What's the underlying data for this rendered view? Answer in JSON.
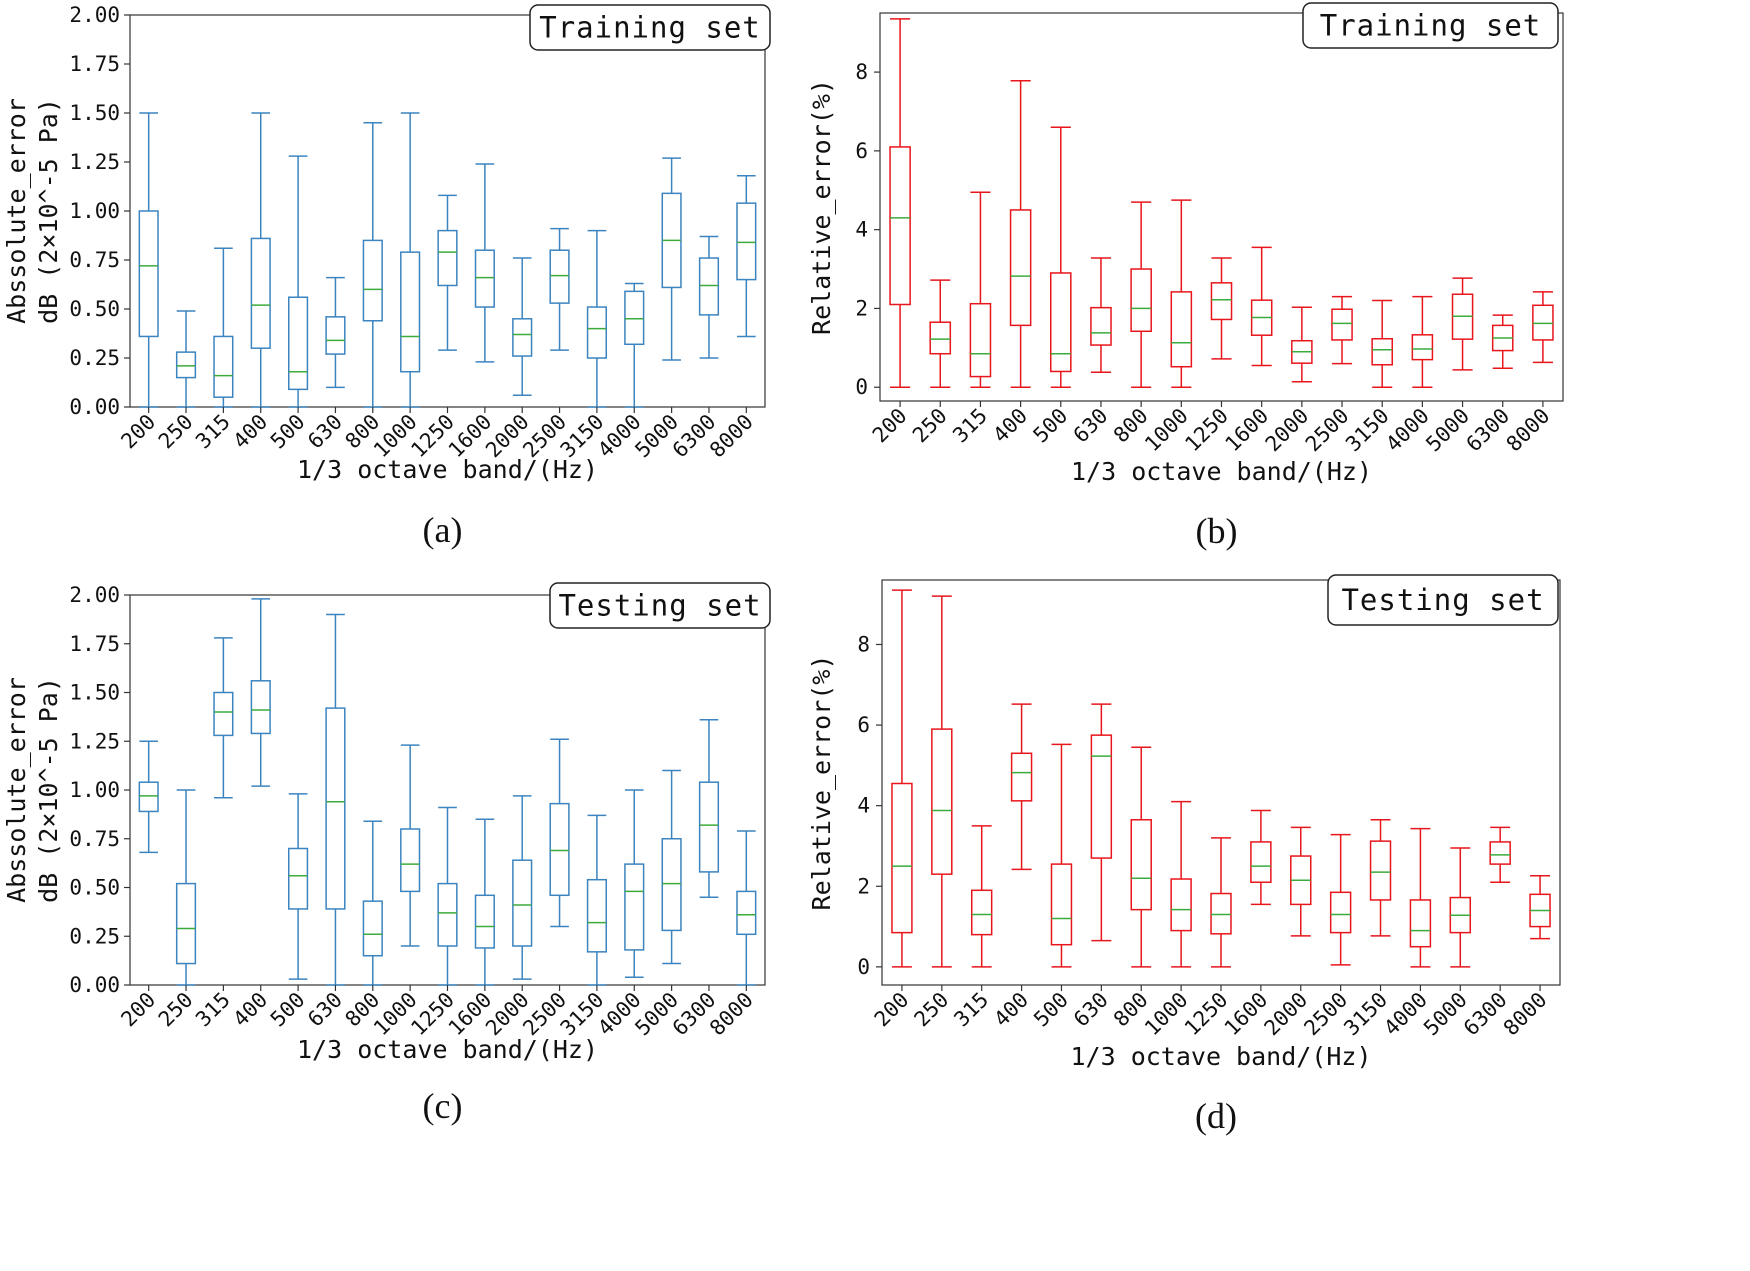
{
  "chart_data": [
    {
      "id": "a",
      "type": "box",
      "caption": "(a)",
      "legend": "Training set",
      "color": "#3b84c0",
      "xlabel": "1/3 octave band/(Hz)",
      "ylabel_lines": [
        "Abssolute_error",
        "dB (2×10^-5 Pa)"
      ],
      "yticks": [
        "0.00",
        "0.25",
        "0.50",
        "0.75",
        "1.00",
        "1.25",
        "1.50",
        "1.75",
        "2.00"
      ],
      "ylim": [
        0,
        2.0
      ],
      "categories": [
        "200",
        "250",
        "315",
        "400",
        "500",
        "630",
        "800",
        "1000",
        "1250",
        "1600",
        "2000",
        "2500",
        "3150",
        "4000",
        "5000",
        "6300",
        "8000"
      ],
      "boxes": [
        {
          "min": 0.0,
          "q1": 0.36,
          "median": 0.72,
          "q3": 1.0,
          "max": 1.5
        },
        {
          "min": 0.0,
          "q1": 0.15,
          "median": 0.21,
          "q3": 0.28,
          "max": 0.49
        },
        {
          "min": 0.0,
          "q1": 0.05,
          "median": 0.16,
          "q3": 0.36,
          "max": 0.81
        },
        {
          "min": 0.0,
          "q1": 0.3,
          "median": 0.52,
          "q3": 0.86,
          "max": 1.5
        },
        {
          "min": 0.0,
          "q1": 0.09,
          "median": 0.18,
          "q3": 0.56,
          "max": 1.28
        },
        {
          "min": 0.1,
          "q1": 0.27,
          "median": 0.34,
          "q3": 0.46,
          "max": 0.66
        },
        {
          "min": 0.0,
          "q1": 0.44,
          "median": 0.6,
          "q3": 0.85,
          "max": 1.45
        },
        {
          "min": 0.0,
          "q1": 0.18,
          "median": 0.36,
          "q3": 0.79,
          "max": 1.5
        },
        {
          "min": 0.29,
          "q1": 0.62,
          "median": 0.79,
          "q3": 0.9,
          "max": 1.08
        },
        {
          "min": 0.23,
          "q1": 0.51,
          "median": 0.66,
          "q3": 0.8,
          "max": 1.24
        },
        {
          "min": 0.06,
          "q1": 0.26,
          "median": 0.37,
          "q3": 0.45,
          "max": 0.76
        },
        {
          "min": 0.29,
          "q1": 0.53,
          "median": 0.67,
          "q3": 0.8,
          "max": 0.91
        },
        {
          "min": 0.0,
          "q1": 0.25,
          "median": 0.4,
          "q3": 0.51,
          "max": 0.9
        },
        {
          "min": 0.0,
          "q1": 0.32,
          "median": 0.45,
          "q3": 0.59,
          "max": 0.63
        },
        {
          "min": 0.24,
          "q1": 0.61,
          "median": 0.85,
          "q3": 1.09,
          "max": 1.27
        },
        {
          "min": 0.25,
          "q1": 0.47,
          "median": 0.62,
          "q3": 0.76,
          "max": 0.87
        },
        {
          "min": 0.36,
          "q1": 0.65,
          "median": 0.84,
          "q3": 1.04,
          "max": 1.18
        }
      ]
    },
    {
      "id": "b",
      "type": "box",
      "caption": "(b)",
      "legend": "Training set",
      "color": "#e8151b",
      "xlabel": "1/3 octave band/(Hz)",
      "ylabel_lines": [
        "Relative_error(%)"
      ],
      "yticks": [
        "0",
        "2",
        "4",
        "6",
        "8"
      ],
      "ylim": [
        -0.35,
        9.5
      ],
      "categories": [
        "200",
        "250",
        "315",
        "400",
        "500",
        "630",
        "800",
        "1000",
        "1250",
        "1600",
        "2000",
        "2500",
        "3150",
        "4000",
        "5000",
        "6300",
        "8000"
      ],
      "boxes": [
        {
          "min": 0.0,
          "q1": 2.1,
          "median": 4.3,
          "q3": 6.1,
          "max": 9.35
        },
        {
          "min": 0.0,
          "q1": 0.85,
          "median": 1.22,
          "q3": 1.65,
          "max": 2.72
        },
        {
          "min": 0.0,
          "q1": 0.27,
          "median": 0.85,
          "q3": 2.12,
          "max": 4.95
        },
        {
          "min": 0.0,
          "q1": 1.57,
          "median": 2.82,
          "q3": 4.5,
          "max": 7.78
        },
        {
          "min": 0.0,
          "q1": 0.4,
          "median": 0.85,
          "q3": 2.9,
          "max": 6.6
        },
        {
          "min": 0.38,
          "q1": 1.07,
          "median": 1.38,
          "q3": 2.02,
          "max": 3.28
        },
        {
          "min": 0.0,
          "q1": 1.42,
          "median": 2.0,
          "q3": 3.0,
          "max": 4.7
        },
        {
          "min": 0.0,
          "q1": 0.52,
          "median": 1.13,
          "q3": 2.42,
          "max": 4.75
        },
        {
          "min": 0.72,
          "q1": 1.72,
          "median": 2.22,
          "q3": 2.65,
          "max": 3.28
        },
        {
          "min": 0.55,
          "q1": 1.32,
          "median": 1.77,
          "q3": 2.21,
          "max": 3.55
        },
        {
          "min": 0.14,
          "q1": 0.61,
          "median": 0.9,
          "q3": 1.18,
          "max": 2.03
        },
        {
          "min": 0.6,
          "q1": 1.2,
          "median": 1.62,
          "q3": 1.98,
          "max": 2.3
        },
        {
          "min": 0.0,
          "q1": 0.57,
          "median": 0.95,
          "q3": 1.23,
          "max": 2.2
        },
        {
          "min": 0.0,
          "q1": 0.7,
          "median": 0.97,
          "q3": 1.33,
          "max": 2.3
        },
        {
          "min": 0.44,
          "q1": 1.22,
          "median": 1.8,
          "q3": 2.36,
          "max": 2.77
        },
        {
          "min": 0.48,
          "q1": 0.93,
          "median": 1.25,
          "q3": 1.57,
          "max": 1.83
        },
        {
          "min": 0.63,
          "q1": 1.2,
          "median": 1.62,
          "q3": 2.08,
          "max": 2.42
        }
      ]
    },
    {
      "id": "c",
      "type": "box",
      "caption": "(c)",
      "legend": "Testing set",
      "color": "#3b84c0",
      "xlabel": "1/3 octave band/(Hz)",
      "ylabel_lines": [
        "Abssolute_error",
        "dB (2×10^-5 Pa)"
      ],
      "yticks": [
        "0.00",
        "0.25",
        "0.50",
        "0.75",
        "1.00",
        "1.25",
        "1.50",
        "1.75",
        "2.00"
      ],
      "ylim": [
        0,
        2.0
      ],
      "categories": [
        "200",
        "250",
        "315",
        "400",
        "500",
        "630",
        "800",
        "1000",
        "1250",
        "1600",
        "2000",
        "2500",
        "3150",
        "4000",
        "5000",
        "6300",
        "8000"
      ],
      "boxes": [
        {
          "min": 0.68,
          "q1": 0.89,
          "median": 0.97,
          "q3": 1.04,
          "max": 1.25
        },
        {
          "min": 0.0,
          "q1": 0.11,
          "median": 0.29,
          "q3": 0.52,
          "max": 1.0
        },
        {
          "min": 0.96,
          "q1": 1.28,
          "median": 1.4,
          "q3": 1.5,
          "max": 1.78
        },
        {
          "min": 1.02,
          "q1": 1.29,
          "median": 1.41,
          "q3": 1.56,
          "max": 1.98
        },
        {
          "min": 0.03,
          "q1": 0.39,
          "median": 0.56,
          "q3": 0.7,
          "max": 0.98
        },
        {
          "min": 0.0,
          "q1": 0.39,
          "median": 0.94,
          "q3": 1.42,
          "max": 1.9
        },
        {
          "min": 0.0,
          "q1": 0.15,
          "median": 0.26,
          "q3": 0.43,
          "max": 0.84
        },
        {
          "min": 0.2,
          "q1": 0.48,
          "median": 0.62,
          "q3": 0.8,
          "max": 1.23
        },
        {
          "min": 0.0,
          "q1": 0.2,
          "median": 0.37,
          "q3": 0.52,
          "max": 0.91
        },
        {
          "min": 0.0,
          "q1": 0.19,
          "median": 0.3,
          "q3": 0.46,
          "max": 0.85
        },
        {
          "min": 0.03,
          "q1": 0.2,
          "median": 0.41,
          "q3": 0.64,
          "max": 0.97
        },
        {
          "min": 0.3,
          "q1": 0.46,
          "median": 0.69,
          "q3": 0.93,
          "max": 1.26
        },
        {
          "min": 0.0,
          "q1": 0.17,
          "median": 0.32,
          "q3": 0.54,
          "max": 0.87
        },
        {
          "min": 0.04,
          "q1": 0.18,
          "median": 0.48,
          "q3": 0.62,
          "max": 1.0
        },
        {
          "min": 0.11,
          "q1": 0.28,
          "median": 0.52,
          "q3": 0.75,
          "max": 1.1
        },
        {
          "min": 0.45,
          "q1": 0.58,
          "median": 0.82,
          "q3": 1.04,
          "max": 1.36
        },
        {
          "min": 0.0,
          "q1": 0.26,
          "median": 0.36,
          "q3": 0.48,
          "max": 0.79
        }
      ]
    },
    {
      "id": "d",
      "type": "box",
      "caption": "(d)",
      "legend": "Testing set",
      "color": "#e8151b",
      "xlabel": "1/3 octave band/(Hz)",
      "ylabel_lines": [
        "Relative_error(%)"
      ],
      "yticks": [
        "0",
        "2",
        "4",
        "6",
        "8"
      ],
      "ylim": [
        -0.45,
        9.6
      ],
      "categories": [
        "200",
        "250",
        "315",
        "400",
        "500",
        "630",
        "800",
        "1000",
        "1250",
        "1600",
        "2000",
        "2500",
        "3150",
        "4000",
        "5000",
        "6300",
        "8000"
      ],
      "boxes": [
        {
          "min": 0.0,
          "q1": 0.85,
          "median": 2.5,
          "q3": 4.55,
          "max": 9.35
        },
        {
          "min": 0.0,
          "q1": 2.3,
          "median": 3.88,
          "q3": 5.9,
          "max": 9.2
        },
        {
          "min": 0.0,
          "q1": 0.8,
          "median": 1.3,
          "q3": 1.9,
          "max": 3.5
        },
        {
          "min": 2.42,
          "q1": 4.12,
          "median": 4.82,
          "q3": 5.3,
          "max": 6.52
        },
        {
          "min": 0.0,
          "q1": 0.55,
          "median": 1.2,
          "q3": 2.55,
          "max": 5.52
        },
        {
          "min": 0.65,
          "q1": 2.7,
          "median": 5.23,
          "q3": 5.75,
          "max": 6.52
        },
        {
          "min": 0.0,
          "q1": 1.42,
          "median": 2.2,
          "q3": 3.65,
          "max": 5.45
        },
        {
          "min": 0.0,
          "q1": 0.9,
          "median": 1.42,
          "q3": 2.18,
          "max": 4.1
        },
        {
          "min": 0.0,
          "q1": 0.82,
          "median": 1.3,
          "q3": 1.82,
          "max": 3.2
        },
        {
          "min": 1.55,
          "q1": 2.1,
          "median": 2.5,
          "q3": 3.1,
          "max": 3.88
        },
        {
          "min": 0.77,
          "q1": 1.55,
          "median": 2.15,
          "q3": 2.75,
          "max": 3.46
        },
        {
          "min": 0.05,
          "q1": 0.85,
          "median": 1.3,
          "q3": 1.85,
          "max": 3.28
        },
        {
          "min": 0.77,
          "q1": 1.66,
          "median": 2.35,
          "q3": 3.12,
          "max": 3.65
        },
        {
          "min": 0.0,
          "q1": 0.5,
          "median": 0.9,
          "q3": 1.66,
          "max": 3.43
        },
        {
          "min": 0.0,
          "q1": 0.85,
          "median": 1.28,
          "q3": 1.72,
          "max": 2.95
        },
        {
          "min": 2.1,
          "q1": 2.55,
          "median": 2.78,
          "q3": 3.1,
          "max": 3.46
        },
        {
          "min": 0.7,
          "q1": 1.0,
          "median": 1.4,
          "q3": 1.8,
          "max": 2.26
        }
      ]
    }
  ]
}
